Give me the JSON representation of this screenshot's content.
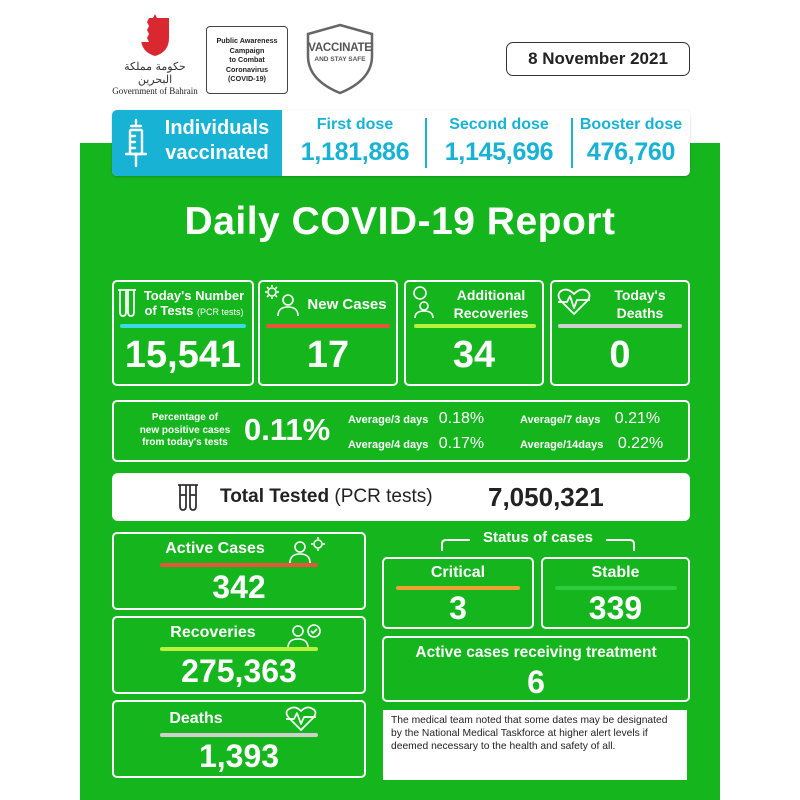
{
  "header": {
    "gov_arabic": "حكومة مملكة البحرين",
    "gov_label": "Government of Bahrain",
    "campaign_lines": [
      "Public Awareness",
      "Campaign",
      "to Combat",
      "Coronavirus",
      "(COVID-19)"
    ],
    "shield_title": "VACCINATE",
    "shield_subtitle": "AND STAY SAFE",
    "date": "8 November 2021"
  },
  "vaccination": {
    "title_line1": "Individuals",
    "title_line2": "vaccinated",
    "doses": [
      {
        "label": "First dose",
        "value": "1,181,886"
      },
      {
        "label": "Second dose",
        "value": "1,145,696"
      },
      {
        "label": "Booster dose",
        "value": "476,760"
      }
    ]
  },
  "title": "Daily COVID-19 Report",
  "stats": {
    "tests": {
      "label_line1": "Today's Number",
      "label_line2": "of Tests",
      "label_sub": "(PCR tests)",
      "value": "15,541",
      "line_color": "#39d9e6"
    },
    "new_cases": {
      "label": "New Cases",
      "value": "17",
      "line_color": "#e8553b"
    },
    "additional_recoveries": {
      "label_line1": "Additional",
      "label_line2": "Recoveries",
      "value": "34",
      "line_color": "#b8f23b"
    },
    "deaths_today": {
      "label_line1": "Today's",
      "label_line2": "Deaths",
      "value": "0",
      "line_color": "#cfcfcf"
    }
  },
  "positivity": {
    "label_line1": "Percentage of",
    "label_line2": "new positive cases",
    "label_line3": "from today's tests",
    "value": "0.11%",
    "averages": [
      {
        "label": "Average/3 days",
        "value": "0.18%"
      },
      {
        "label": "Average/7 days",
        "value": "0.21%"
      },
      {
        "label": "Average/4 days",
        "value": "0.17%"
      },
      {
        "label": "Average/14days",
        "value": "0.22%"
      }
    ]
  },
  "total_tested": {
    "label_bold": "Total Tested",
    "label_rest": "(PCR tests)",
    "value": "7,050,321"
  },
  "cumulative": {
    "active": {
      "label": "Active Cases",
      "value": "342",
      "line_color": "#e8553b"
    },
    "recoveries": {
      "label": "Recoveries",
      "value": "275,363",
      "line_color": "#b8f23b"
    },
    "deaths": {
      "label": "Deaths",
      "value": "1,393",
      "line_color": "#cfcfcf"
    }
  },
  "status": {
    "title": "Status of cases",
    "critical": {
      "label": "Critical",
      "value": "3",
      "line_color": "#f0a030"
    },
    "stable": {
      "label": "Stable",
      "value": "339",
      "line_color": "#2ecc40"
    },
    "treatment": {
      "label": "Active cases receiving treatment",
      "value": "6"
    }
  },
  "note": "The medical team noted that some dates may be designated by the National Medical Taskforce at higher alert levels if deemed necessary to the health and safety of all."
}
